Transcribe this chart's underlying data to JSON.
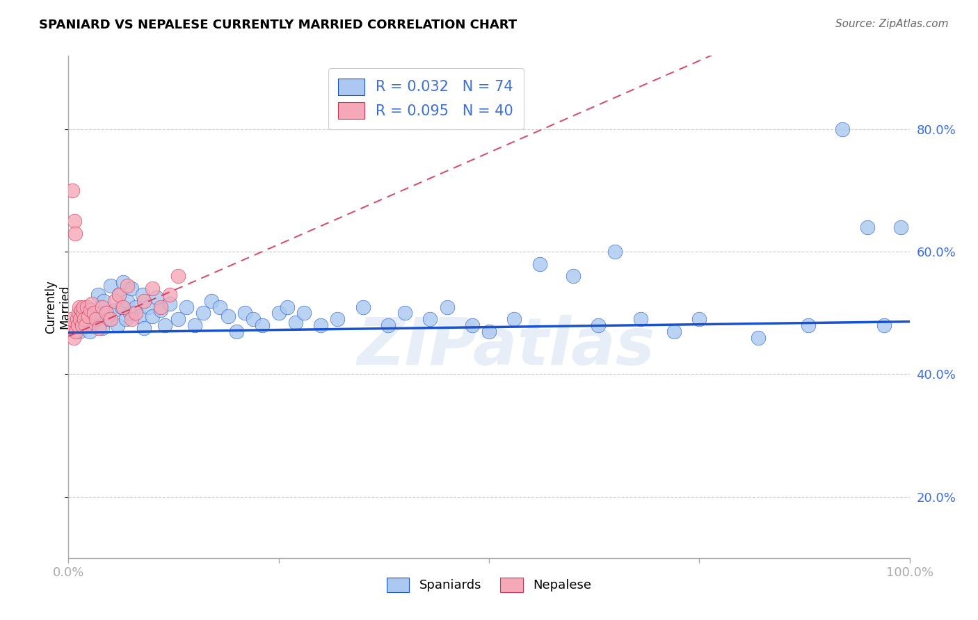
{
  "title": "SPANIARD VS NEPALESE CURRENTLY MARRIED CORRELATION CHART",
  "source": "Source: ZipAtlas.com",
  "legend_blue_r": "R = 0.032",
  "legend_blue_n": "N = 74",
  "legend_pink_r": "R = 0.095",
  "legend_pink_n": "N = 40",
  "legend_label_blue": "Spaniards",
  "legend_label_pink": "Nepalese",
  "blue_color": "#aac8f0",
  "pink_color": "#f5a8b8",
  "blue_line_color": "#1a52cc",
  "pink_line_color": "#cc3355",
  "watermark": "ZIPatlas",
  "blue_line_intercept": 0.468,
  "blue_line_slope": 0.018,
  "pink_line_intercept": 0.462,
  "pink_line_slope": 0.6,
  "xlim": [
    0.0,
    1.0
  ],
  "ylim": [
    0.1,
    0.92
  ],
  "yticks": [
    0.2,
    0.4,
    0.6,
    0.8
  ],
  "ytick_labels": [
    "20.0%",
    "40.0%",
    "60.0%",
    "80.0%"
  ],
  "spaniards_x": [
    0.01,
    0.013,
    0.015,
    0.018,
    0.02,
    0.022,
    0.025,
    0.027,
    0.03,
    0.033,
    0.035,
    0.038,
    0.04,
    0.042,
    0.045,
    0.048,
    0.05,
    0.055,
    0.058,
    0.06,
    0.063,
    0.065,
    0.068,
    0.07,
    0.073,
    0.075,
    0.08,
    0.085,
    0.088,
    0.09,
    0.095,
    0.1,
    0.105,
    0.11,
    0.115,
    0.12,
    0.13,
    0.14,
    0.15,
    0.16,
    0.17,
    0.18,
    0.19,
    0.2,
    0.21,
    0.22,
    0.23,
    0.25,
    0.26,
    0.27,
    0.28,
    0.3,
    0.32,
    0.35,
    0.38,
    0.4,
    0.43,
    0.45,
    0.48,
    0.5,
    0.53,
    0.56,
    0.6,
    0.63,
    0.65,
    0.68,
    0.72,
    0.75,
    0.82,
    0.88,
    0.92,
    0.95,
    0.97,
    0.99
  ],
  "spaniards_y": [
    0.475,
    0.47,
    0.49,
    0.48,
    0.5,
    0.51,
    0.47,
    0.49,
    0.485,
    0.5,
    0.53,
    0.51,
    0.475,
    0.52,
    0.5,
    0.49,
    0.545,
    0.505,
    0.48,
    0.53,
    0.51,
    0.55,
    0.49,
    0.52,
    0.5,
    0.54,
    0.51,
    0.495,
    0.53,
    0.475,
    0.51,
    0.495,
    0.525,
    0.505,
    0.48,
    0.515,
    0.49,
    0.51,
    0.48,
    0.5,
    0.52,
    0.51,
    0.495,
    0.47,
    0.5,
    0.49,
    0.48,
    0.5,
    0.51,
    0.485,
    0.5,
    0.48,
    0.49,
    0.51,
    0.48,
    0.5,
    0.49,
    0.51,
    0.48,
    0.47,
    0.49,
    0.58,
    0.56,
    0.48,
    0.6,
    0.49,
    0.47,
    0.49,
    0.46,
    0.48,
    0.8,
    0.64,
    0.48,
    0.64
  ],
  "nepalese_x": [
    0.002,
    0.003,
    0.004,
    0.005,
    0.006,
    0.007,
    0.008,
    0.009,
    0.01,
    0.011,
    0.012,
    0.013,
    0.014,
    0.015,
    0.016,
    0.017,
    0.018,
    0.019,
    0.02,
    0.022,
    0.024,
    0.026,
    0.028,
    0.03,
    0.033,
    0.036,
    0.04,
    0.045,
    0.05,
    0.055,
    0.06,
    0.065,
    0.07,
    0.075,
    0.08,
    0.09,
    0.1,
    0.11,
    0.12,
    0.13
  ],
  "nepalese_y": [
    0.475,
    0.48,
    0.49,
    0.7,
    0.46,
    0.65,
    0.63,
    0.47,
    0.49,
    0.48,
    0.5,
    0.51,
    0.49,
    0.505,
    0.48,
    0.5,
    0.51,
    0.49,
    0.48,
    0.51,
    0.495,
    0.505,
    0.515,
    0.5,
    0.49,
    0.475,
    0.51,
    0.5,
    0.49,
    0.52,
    0.53,
    0.51,
    0.545,
    0.49,
    0.5,
    0.52,
    0.54,
    0.51,
    0.53,
    0.56
  ]
}
